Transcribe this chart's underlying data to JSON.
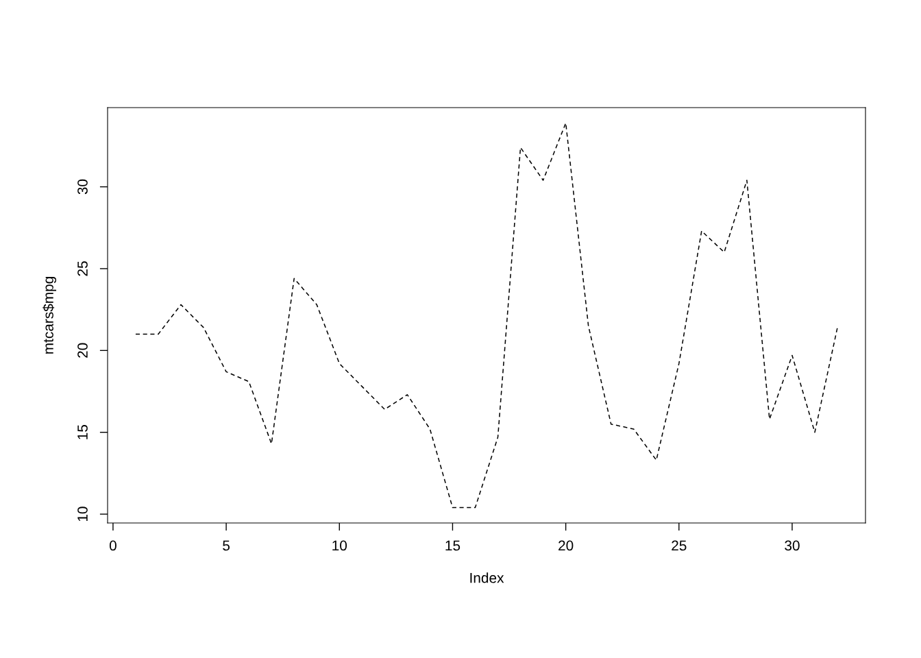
{
  "chart_data": {
    "type": "line",
    "xlabel": "Index",
    "ylabel": "mtcars$mpg",
    "x": [
      1,
      2,
      3,
      4,
      5,
      6,
      7,
      8,
      9,
      10,
      11,
      12,
      13,
      14,
      15,
      16,
      17,
      18,
      19,
      20,
      21,
      22,
      23,
      24,
      25,
      26,
      27,
      28,
      29,
      30,
      31,
      32
    ],
    "series": [
      {
        "color": "#000000",
        "values": [
          21.0,
          21.0,
          22.8,
          21.4,
          18.7,
          18.1,
          14.3,
          24.4,
          22.8,
          19.2,
          17.8,
          16.4,
          17.3,
          15.2,
          10.4,
          10.4,
          14.7,
          32.4,
          30.4,
          33.9,
          21.5,
          15.5,
          15.2,
          13.3,
          19.2,
          27.3,
          26.0,
          30.4,
          15.8,
          19.7,
          15.0,
          21.4
        ]
      }
    ],
    "xlim": [
      -0.24,
      33.24
    ],
    "ylim": [
      9.46,
      34.84
    ],
    "xticks": [
      0,
      5,
      10,
      15,
      20,
      25,
      30
    ],
    "yticks": [
      10,
      15,
      20,
      25,
      30
    ],
    "line_style": "dashed"
  }
}
